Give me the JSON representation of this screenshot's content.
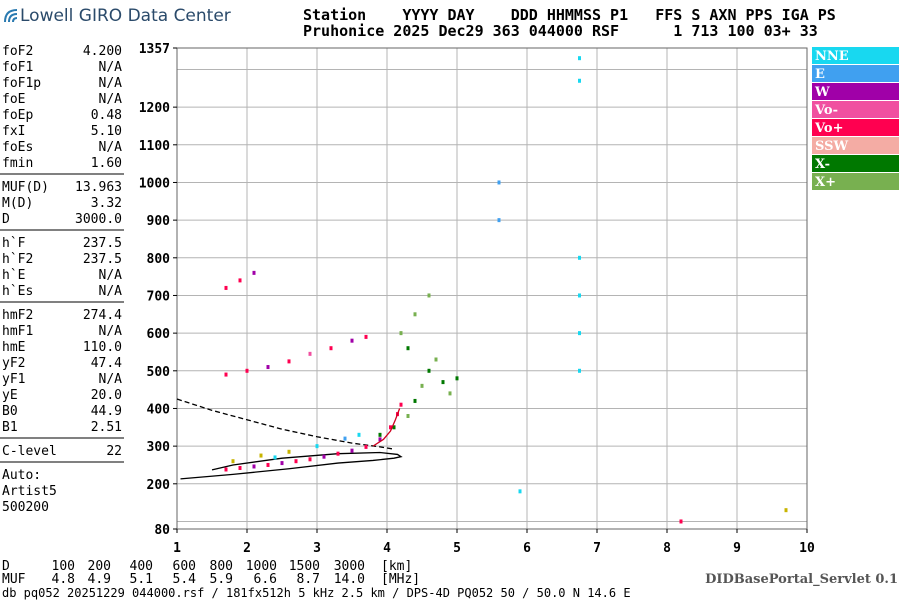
{
  "header": {
    "logo": "Lowell GIRO Data Center",
    "line1": "Station    YYYY DAY    DDD HHMMSS P1   FFS S AXN PPS IGA PS",
    "line2": "Pruhonice 2025 Dec29 363 044000 RSF      1 713 100 03+ 33"
  },
  "parameters": [
    [
      {
        "name": "foF2",
        "value": "4.200"
      },
      {
        "name": "foF1",
        "value": "N/A"
      },
      {
        "name": "foF1p",
        "value": "N/A"
      },
      {
        "name": "foE",
        "value": "N/A"
      },
      {
        "name": "foEp",
        "value": "0.48"
      },
      {
        "name": "fxI",
        "value": "5.10"
      },
      {
        "name": "foEs",
        "value": "N/A"
      },
      {
        "name": "fmin",
        "value": "1.60"
      }
    ],
    [
      {
        "name": "MUF(D)",
        "value": "13.963"
      },
      {
        "name": "M(D)",
        "value": "3.32"
      },
      {
        "name": "D",
        "value": "3000.0"
      }
    ],
    [
      {
        "name": "h`F",
        "value": "237.5"
      },
      {
        "name": "h`F2",
        "value": "237.5"
      },
      {
        "name": "h`E",
        "value": "N/A"
      },
      {
        "name": "h`Es",
        "value": "N/A"
      }
    ],
    [
      {
        "name": "hmF2",
        "value": "274.4"
      },
      {
        "name": "hmF1",
        "value": "N/A"
      },
      {
        "name": "hmE",
        "value": "110.0"
      },
      {
        "name": "yF2",
        "value": "47.4"
      },
      {
        "name": "yF1",
        "value": "N/A"
      },
      {
        "name": "yE",
        "value": "20.0"
      },
      {
        "name": "B0",
        "value": "44.9"
      },
      {
        "name": "B1",
        "value": "2.51"
      }
    ],
    [
      {
        "name": "C-level",
        "value": "22"
      }
    ]
  ],
  "auto": [
    "Auto:",
    "Artist5",
    "500200"
  ],
  "legend": [
    {
      "label": "NNE",
      "color": "#18d8f0"
    },
    {
      "label": "E",
      "color": "#40a0f0"
    },
    {
      "label": "W",
      "color": "#a000a8"
    },
    {
      "label": "Vo-",
      "color": "#f050a0"
    },
    {
      "label": "Vo+",
      "color": "#ff0050"
    },
    {
      "label": "SSW",
      "color": "#f4aca4"
    },
    {
      "label": "X-",
      "color": "#007800"
    },
    {
      "label": "X+",
      "color": "#78b050"
    }
  ],
  "chart_data": {
    "type": "scatter",
    "xlim": [
      1,
      10
    ],
    "xticks": [
      1,
      2,
      3,
      4,
      5,
      6,
      7,
      8,
      9,
      10
    ],
    "ylim": [
      80,
      1357
    ],
    "yticks": [
      80,
      200,
      300,
      400,
      500,
      600,
      700,
      800,
      900,
      1000,
      1100,
      1200,
      1357
    ],
    "grid_x": [
      1,
      2,
      3,
      4,
      5,
      6,
      7,
      8,
      9,
      10
    ],
    "grid_y": [
      100,
      200,
      300,
      400,
      500,
      600,
      700,
      800,
      900,
      1000,
      1100,
      1200,
      1300
    ],
    "x": [
      1.7,
      1.9,
      2.1,
      2.3,
      2.5,
      2.7,
      2.9,
      3.1,
      3.3,
      3.5,
      3.7,
      3.9,
      4.05,
      4.15,
      4.2,
      1.8,
      2.2,
      2.6,
      2.4,
      3.0,
      3.4,
      3.6,
      3.9,
      4.1,
      4.3,
      4.4,
      4.5,
      4.6,
      4.7,
      4.8,
      4.9,
      5.0,
      4.2,
      4.4,
      4.6,
      4.3,
      1.7,
      2.0,
      2.3,
      2.6,
      2.9,
      3.2,
      3.5,
      3.7,
      1.7,
      1.9,
      2.1,
      6.75,
      6.75,
      6.75,
      6.75,
      6.75,
      6.75,
      5.6,
      5.6,
      5.9,
      8.2,
      9.7
    ],
    "y": [
      238,
      242,
      246,
      250,
      255,
      260,
      265,
      272,
      280,
      288,
      298,
      318,
      350,
      385,
      410,
      260,
      275,
      285,
      270,
      300,
      320,
      330,
      330,
      350,
      380,
      420,
      460,
      500,
      530,
      470,
      440,
      480,
      600,
      650,
      700,
      560,
      490,
      500,
      510,
      525,
      545,
      560,
      580,
      590,
      720,
      740,
      760,
      500,
      600,
      700,
      800,
      1270,
      1330,
      900,
      1000,
      180,
      100,
      130
    ],
    "colors": [
      "#ff0050",
      "#ff0050",
      "#a000a8",
      "#ff0050",
      "#a000a8",
      "#ff0050",
      "#ff0050",
      "#a000a8",
      "#ff0050",
      "#a000a8",
      "#ff0050",
      "#a000a8",
      "#ff0050",
      "#ff0050",
      "#ff0050",
      "#c8b400",
      "#c8b400",
      "#c8b400",
      "#18d8f0",
      "#18d8f0",
      "#40a0f0",
      "#18d8f0",
      "#007800",
      "#007800",
      "#78b050",
      "#007800",
      "#78b050",
      "#007800",
      "#78b050",
      "#007800",
      "#78b050",
      "#007800",
      "#78b050",
      "#78b050",
      "#78b050",
      "#007800",
      "#ff0050",
      "#ff0050",
      "#a000a8",
      "#ff0050",
      "#f050a0",
      "#ff0050",
      "#a000a8",
      "#ff0050",
      "#ff0050",
      "#ff0050",
      "#a000a8",
      "#18d8f0",
      "#18d8f0",
      "#18d8f0",
      "#18d8f0",
      "#18d8f0",
      "#18d8f0",
      "#40a0f0",
      "#40a0f0",
      "#18d8f0",
      "#ff0050",
      "#c8b400"
    ],
    "profile_solid": {
      "x": [
        1.05,
        1.8,
        2.6,
        3.3,
        3.8,
        4.1,
        4.2,
        4.15,
        3.9,
        3.3,
        2.5,
        1.8,
        1.5
      ],
      "y": [
        213,
        225,
        240,
        255,
        262,
        268,
        272,
        278,
        283,
        280,
        268,
        250,
        237
      ]
    },
    "profile_red": {
      "x": [
        3.8,
        3.95,
        4.05,
        4.12,
        4.18
      ],
      "y": [
        300,
        318,
        340,
        370,
        400
      ]
    },
    "profile_dashed": {
      "x": [
        1.0,
        1.5,
        2.0,
        2.5,
        3.0,
        3.5,
        3.9,
        4.1
      ],
      "y": [
        425,
        395,
        370,
        345,
        325,
        308,
        298,
        292
      ]
    }
  },
  "bottom": {
    "d_label": "D",
    "d_values": [
      "100",
      "200",
      "400",
      "600",
      "800",
      "1000",
      "1500",
      "3000"
    ],
    "d_unit": "[km]",
    "muf_label": "MUF",
    "muf_values": [
      "4.8",
      "4.9",
      "5.1",
      "5.4",
      "5.9",
      "6.6",
      "8.7",
      "14.0"
    ],
    "muf_unit": "[MHz]"
  },
  "footer": {
    "file": "db pq052 20251229 044000.rsf / 181fx512h 5 kHz 2.5 km / DPS-4D PQ052 50 / 50.0 N 14.6 E",
    "servlet": "DIDBasePortal_Servlet 0.1"
  }
}
